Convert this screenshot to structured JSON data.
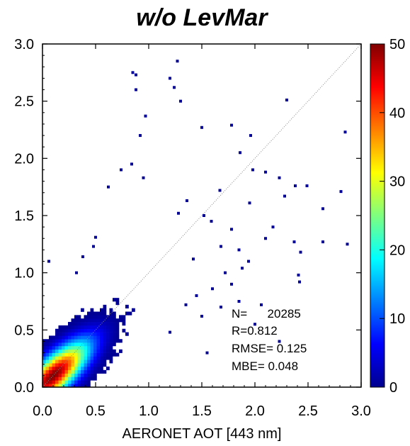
{
  "chart_data": {
    "type": "heatmap",
    "title": "w/o LevMar",
    "xlabel": "AERONET AOT [443 nm]",
    "ylabel": "",
    "xlim": [
      0.0,
      3.0
    ],
    "ylim": [
      0.0,
      3.0
    ],
    "xticks": [
      "0.0",
      "0.5",
      "1.0",
      "1.5",
      "2.0",
      "2.5",
      "3.0"
    ],
    "yticks": [
      "0.0",
      "0.5",
      "1.0",
      "1.5",
      "2.0",
      "2.5",
      "3.0"
    ],
    "one_to_one_line": true,
    "colorbar": {
      "min": 0,
      "max": 50,
      "ticks": [
        "0",
        "10",
        "20",
        "30",
        "40",
        "50"
      ],
      "colormap": "jet"
    },
    "density_core": {
      "peak": [
        0.1,
        0.1
      ],
      "slope": 0.85,
      "spread_along": 0.28,
      "spread_across": 0.1,
      "peak_count": 50
    },
    "scatter_points": [
      [
        0.85,
        2.75
      ],
      [
        0.88,
        2.73
      ],
      [
        1.2,
        2.7
      ],
      [
        1.27,
        2.85
      ],
      [
        0.88,
        2.6
      ],
      [
        1.24,
        2.62
      ],
      [
        1.3,
        2.5
      ],
      [
        2.3,
        2.51
      ],
      [
        0.97,
        2.37
      ],
      [
        0.92,
        2.2
      ],
      [
        1.5,
        2.27
      ],
      [
        1.78,
        2.29
      ],
      [
        2.85,
        2.23
      ],
      [
        1.96,
        2.2
      ],
      [
        1.86,
        2.05
      ],
      [
        0.74,
        1.9
      ],
      [
        0.84,
        1.95
      ],
      [
        0.95,
        1.83
      ],
      [
        1.98,
        1.9
      ],
      [
        2.1,
        1.88
      ],
      [
        0.62,
        1.75
      ],
      [
        1.67,
        1.72
      ],
      [
        2.23,
        1.83
      ],
      [
        2.38,
        1.76
      ],
      [
        2.49,
        1.76
      ],
      [
        1.36,
        1.63
      ],
      [
        2.81,
        1.71
      ],
      [
        2.64,
        1.56
      ],
      [
        1.28,
        1.52
      ],
      [
        1.52,
        1.5
      ],
      [
        1.95,
        1.61
      ],
      [
        2.28,
        1.67
      ],
      [
        1.59,
        1.45
      ],
      [
        1.78,
        1.38
      ],
      [
        2.1,
        1.3
      ],
      [
        2.17,
        1.4
      ],
      [
        0.5,
        1.31
      ],
      [
        0.48,
        1.23
      ],
      [
        2.37,
        1.27
      ],
      [
        2.64,
        1.27
      ],
      [
        2.87,
        1.25
      ],
      [
        1.68,
        1.23
      ],
      [
        1.85,
        1.2
      ],
      [
        2.43,
        1.18
      ],
      [
        0.38,
        1.14
      ],
      [
        1.42,
        1.12
      ],
      [
        1.94,
        1.1
      ],
      [
        0.06,
        1.1
      ],
      [
        0.32,
        1.0
      ],
      [
        2.41,
        0.98
      ],
      [
        1.88,
        1.04
      ],
      [
        1.72,
        1.0
      ],
      [
        2.42,
        0.92
      ],
      [
        1.78,
        0.9
      ],
      [
        1.6,
        0.86
      ],
      [
        1.45,
        0.8
      ],
      [
        1.5,
        0.62
      ],
      [
        1.85,
        0.75
      ],
      [
        1.68,
        0.7
      ],
      [
        2.06,
        0.72
      ],
      [
        2.23,
        0.4
      ],
      [
        1.55,
        0.3
      ],
      [
        2.0,
        0.55
      ],
      [
        1.2,
        0.48
      ],
      [
        1.35,
        0.72
      ]
    ],
    "annotations": [
      "N=      20285",
      "R=0.812",
      "RMSE= 0.125",
      "MBE= 0.048"
    ]
  }
}
